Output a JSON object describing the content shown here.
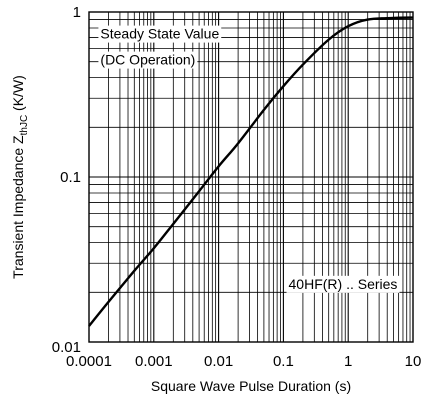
{
  "chart_data": {
    "type": "line",
    "xlabel": "Square Wave Pulse Duration (s)",
    "ylabel_main": "Transient Impedance Z",
    "ylabel_sub": "thJC",
    "ylabel_unit": " (K/W)",
    "xscale": "log",
    "yscale": "log",
    "xlim": [
      0.0001,
      10
    ],
    "ylim": [
      0.01,
      1
    ],
    "grid": true,
    "x_ticks": [
      {
        "value": 0.0001,
        "label": "0.0001"
      },
      {
        "value": 0.001,
        "label": "0.001"
      },
      {
        "value": 0.01,
        "label": "0.01"
      },
      {
        "value": 0.1,
        "label": "0.1"
      },
      {
        "value": 1,
        "label": "1"
      },
      {
        "value": 10,
        "label": "10"
      }
    ],
    "y_ticks": [
      {
        "value": 0.01,
        "label": "0.01"
      },
      {
        "value": 0.1,
        "label": "0.1"
      },
      {
        "value": 1,
        "label": "1"
      }
    ],
    "annotations": [
      {
        "text": "Steady State Value",
        "x": 0.00015,
        "y": 0.69
      },
      {
        "text": "(DC Operation)",
        "x": 0.00015,
        "y": 0.48
      },
      {
        "text": "40HF(R) .. Series",
        "x": 0.12,
        "y": 0.021
      }
    ],
    "series": [
      {
        "x": [
          0.0001,
          0.0002,
          0.0005,
          0.001,
          0.002,
          0.005,
          0.01,
          0.02,
          0.05,
          0.1,
          0.2,
          0.5,
          1,
          2,
          5,
          10
        ],
        "y": [
          0.0125,
          0.0175,
          0.027,
          0.037,
          0.052,
          0.082,
          0.116,
          0.16,
          0.255,
          0.355,
          0.48,
          0.68,
          0.82,
          0.9,
          0.92,
          0.925
        ]
      }
    ]
  }
}
